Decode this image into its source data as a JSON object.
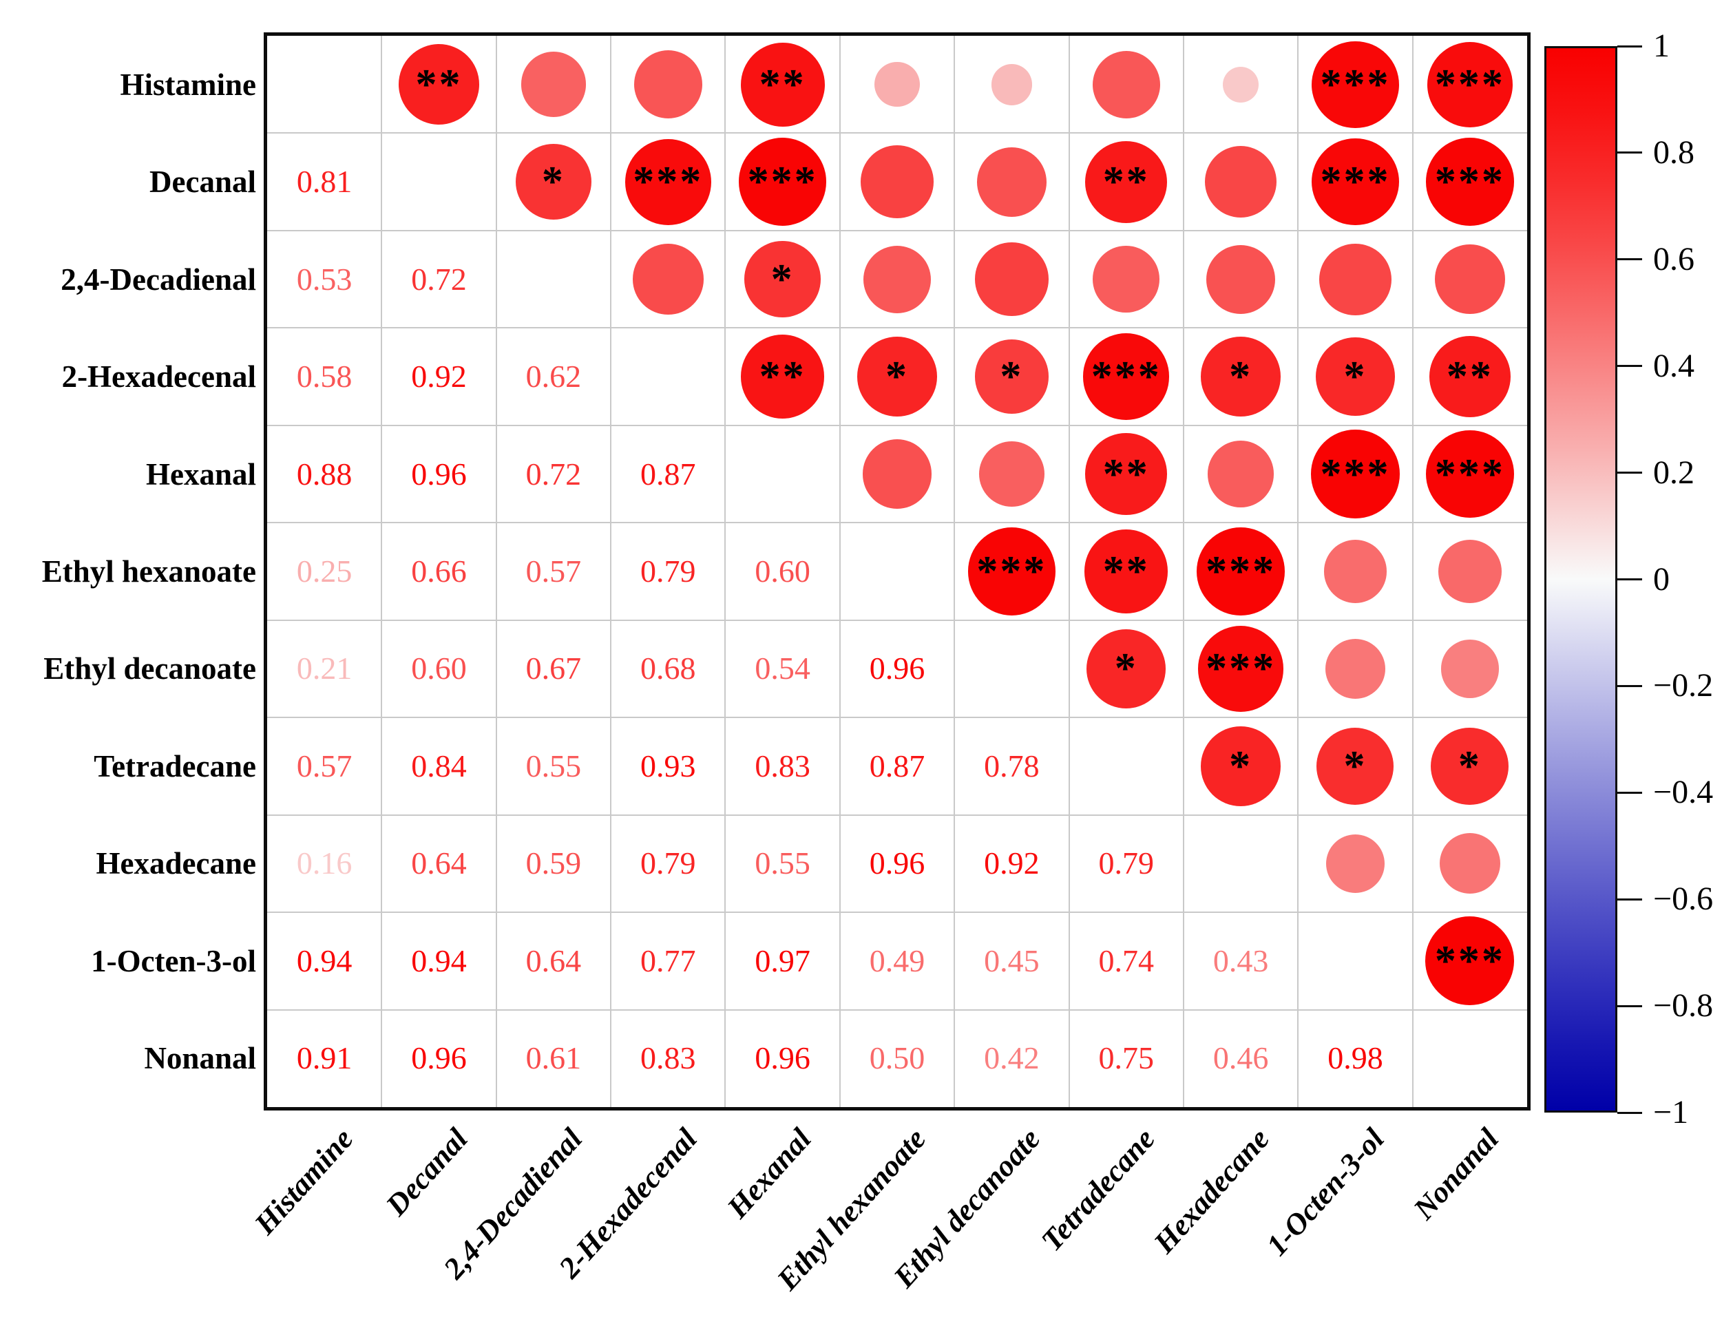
{
  "chart_data": {
    "type": "heatmap",
    "subtype": "correlation-matrix",
    "title": "",
    "variables": [
      "Histamine",
      "Decanal",
      "2,4-Decadienal",
      "2-Hexadecenal",
      "Hexanal",
      "Ethyl hexanoate",
      "Ethyl decanoate",
      "Tetradecane",
      "Hexadecane",
      "1-Octen-3-ol",
      "Nonanal"
    ],
    "lower_triangle_values": [
      [
        "0.81"
      ],
      [
        "0.53",
        "0.72"
      ],
      [
        "0.58",
        "0.92",
        "0.62"
      ],
      [
        "0.88",
        "0.96",
        "0.72",
        "0.87"
      ],
      [
        "0.25",
        "0.66",
        "0.57",
        "0.79",
        "0.60"
      ],
      [
        "0.21",
        "0.60",
        "0.67",
        "0.68",
        "0.54",
        "0.96"
      ],
      [
        "0.57",
        "0.84",
        "0.55",
        "0.93",
        "0.83",
        "0.87",
        "0.78"
      ],
      [
        "0.16",
        "0.64",
        "0.59",
        "0.79",
        "0.55",
        "0.96",
        "0.92",
        "0.79"
      ],
      [
        "0.94",
        "0.94",
        "0.64",
        "0.77",
        "0.97",
        "0.49",
        "0.45",
        "0.74",
        "0.43"
      ],
      [
        "0.91",
        "0.96",
        "0.61",
        "0.83",
        "0.96",
        "0.50",
        "0.42",
        "0.75",
        "0.46",
        "0.98"
      ]
    ],
    "significance_stars": {
      "0,1": "**",
      "0,4": "**",
      "0,9": "***",
      "0,10": "***",
      "1,2": "*",
      "1,3": "***",
      "1,4": "***",
      "1,7": "**",
      "1,9": "***",
      "1,10": "***",
      "2,4": "*",
      "3,4": "**",
      "3,5": "*",
      "3,6": "*",
      "3,7": "***",
      "3,8": "*",
      "3,9": "*",
      "3,10": "**",
      "4,7": "**",
      "4,9": "***",
      "4,10": "***",
      "5,6": "***",
      "5,7": "**",
      "5,8": "***",
      "6,7": "*",
      "6,8": "***",
      "7,8": "*",
      "7,9": "*",
      "7,10": "*",
      "9,10": "***"
    },
    "upper_triangle_encoding": "circle size and color proportional to correlation, black asterisks mark significance",
    "value_range": [
      -1,
      1
    ],
    "grid": true,
    "legend_position": "right",
    "colorbar": {
      "tick_labels": [
        "1",
        "0.8",
        "0.6",
        "0.4",
        "0.2",
        "0",
        "−0.2",
        "−0.4",
        "−0.6",
        "−0.8",
        "−1"
      ],
      "tick_values": [
        1,
        0.8,
        0.6,
        0.4,
        0.2,
        0,
        -0.2,
        -0.4,
        -0.6,
        -0.8,
        -1
      ],
      "max_color": "#F90000",
      "zero_color": "#FFFFFF",
      "min_color": "#0000A8"
    }
  }
}
